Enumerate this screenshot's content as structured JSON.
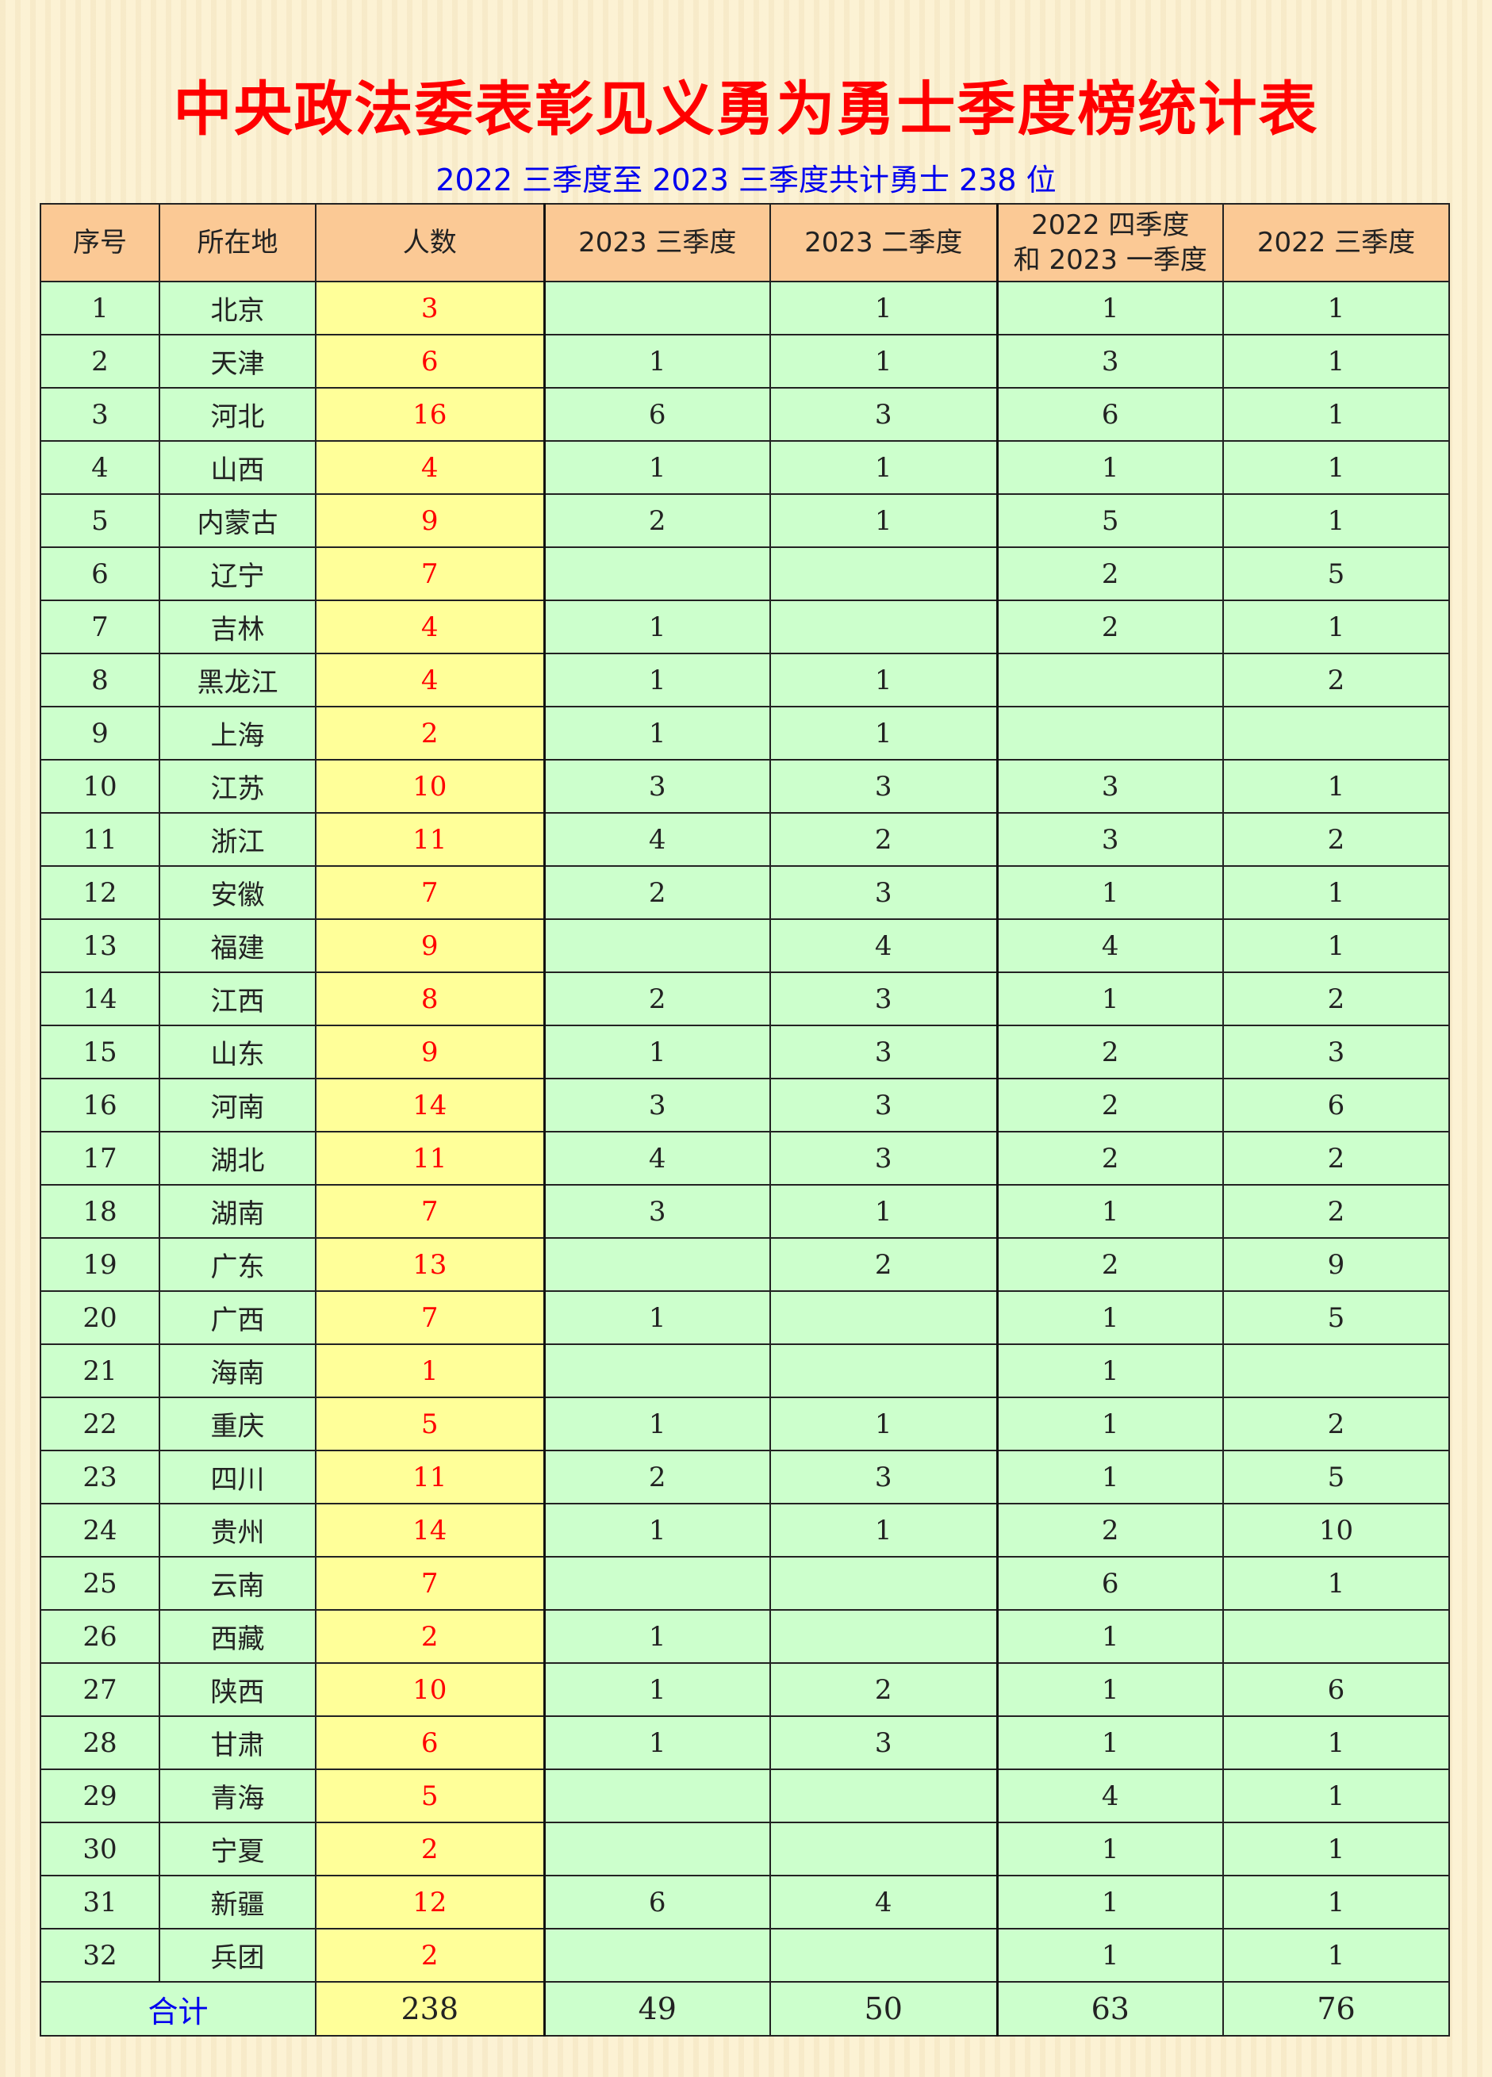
{
  "title": "中央政法委表彰见义勇为勇士季度榜统计表",
  "subtitle": "2022 三季度至 2023 三季度共计勇士 238 位",
  "colors": {
    "title": "#ff0000",
    "subtitle": "#0000ee",
    "header_bg": "#fbc995",
    "row_bg": "#ccffcc",
    "count_bg": "#ffff99",
    "count_text": "#ff0000"
  },
  "table": {
    "headers": [
      "序号",
      "所在地",
      "人数",
      "2023 三季度",
      "2023 二季度",
      "2022 四季度\n和 2023 一季度",
      "2022 三季度"
    ],
    "rows": [
      [
        "1",
        "北京",
        "3",
        "",
        "1",
        "1",
        "1"
      ],
      [
        "2",
        "天津",
        "6",
        "1",
        "1",
        "3",
        "1"
      ],
      [
        "3",
        "河北",
        "16",
        "6",
        "3",
        "6",
        "1"
      ],
      [
        "4",
        "山西",
        "4",
        "1",
        "1",
        "1",
        "1"
      ],
      [
        "5",
        "内蒙古",
        "9",
        "2",
        "1",
        "5",
        "1"
      ],
      [
        "6",
        "辽宁",
        "7",
        "",
        "",
        "2",
        "5"
      ],
      [
        "7",
        "吉林",
        "4",
        "1",
        "",
        "2",
        "1"
      ],
      [
        "8",
        "黑龙江",
        "4",
        "1",
        "1",
        "",
        "2"
      ],
      [
        "9",
        "上海",
        "2",
        "1",
        "1",
        "",
        ""
      ],
      [
        "10",
        "江苏",
        "10",
        "3",
        "3",
        "3",
        "1"
      ],
      [
        "11",
        "浙江",
        "11",
        "4",
        "2",
        "3",
        "2"
      ],
      [
        "12",
        "安徽",
        "7",
        "2",
        "3",
        "1",
        "1"
      ],
      [
        "13",
        "福建",
        "9",
        "",
        "4",
        "4",
        "1"
      ],
      [
        "14",
        "江西",
        "8",
        "2",
        "3",
        "1",
        "2"
      ],
      [
        "15",
        "山东",
        "9",
        "1",
        "3",
        "2",
        "3"
      ],
      [
        "16",
        "河南",
        "14",
        "3",
        "3",
        "2",
        "6"
      ],
      [
        "17",
        "湖北",
        "11",
        "4",
        "3",
        "2",
        "2"
      ],
      [
        "18",
        "湖南",
        "7",
        "3",
        "1",
        "1",
        "2"
      ],
      [
        "19",
        "广东",
        "13",
        "",
        "2",
        "2",
        "9"
      ],
      [
        "20",
        "广西",
        "7",
        "1",
        "",
        "1",
        "5"
      ],
      [
        "21",
        "海南",
        "1",
        "",
        "",
        "1",
        ""
      ],
      [
        "22",
        "重庆",
        "5",
        "1",
        "1",
        "1",
        "2"
      ],
      [
        "23",
        "四川",
        "11",
        "2",
        "3",
        "1",
        "5"
      ],
      [
        "24",
        "贵州",
        "14",
        "1",
        "1",
        "2",
        "10"
      ],
      [
        "25",
        "云南",
        "7",
        "",
        "",
        "6",
        "1"
      ],
      [
        "26",
        "西藏",
        "2",
        "1",
        "",
        "1",
        ""
      ],
      [
        "27",
        "陕西",
        "10",
        "1",
        "2",
        "1",
        "6"
      ],
      [
        "28",
        "甘肃",
        "6",
        "1",
        "3",
        "1",
        "1"
      ],
      [
        "29",
        "青海",
        "5",
        "",
        "",
        "4",
        "1"
      ],
      [
        "30",
        "宁夏",
        "2",
        "",
        "",
        "1",
        "1"
      ],
      [
        "31",
        "新疆",
        "12",
        "6",
        "4",
        "1",
        "1"
      ],
      [
        "32",
        "兵团",
        "2",
        "",
        "",
        "1",
        "1"
      ]
    ],
    "total": {
      "label": "合计",
      "values": [
        "238",
        "49",
        "50",
        "63",
        "76"
      ]
    }
  }
}
